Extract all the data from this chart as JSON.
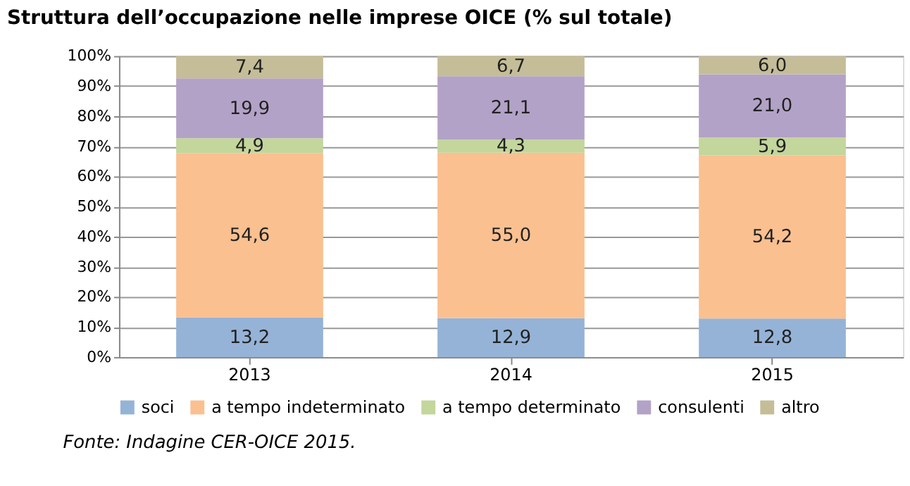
{
  "chart_data": {
    "type": "bar",
    "stacked": true,
    "title": "Struttura dell’occupazione nelle imprese OICE (% sul totale)",
    "categories": [
      "2013",
      "2014",
      "2015"
    ],
    "series": [
      {
        "name": "soci",
        "color": "#95b3d7",
        "values": [
          13.2,
          12.9,
          12.8
        ],
        "value_labels": [
          "13,2",
          "12,9",
          "12,8"
        ]
      },
      {
        "name": "a tempo indeterminato",
        "color": "#fac090",
        "values": [
          54.6,
          55.0,
          54.2
        ],
        "value_labels": [
          "54,6",
          "55,0",
          "54,2"
        ]
      },
      {
        "name": "a tempo determinato",
        "color": "#c3d69b",
        "values": [
          4.9,
          4.3,
          5.9
        ],
        "value_labels": [
          "4,9",
          "4,3",
          "5,9"
        ]
      },
      {
        "name": "consulenti",
        "color": "#b3a2c7",
        "values": [
          19.9,
          21.1,
          21.0
        ],
        "value_labels": [
          "19,9",
          "21,1",
          "21,0"
        ]
      },
      {
        "name": "altro",
        "color": "#c4bd97",
        "values": [
          7.4,
          6.7,
          6.0
        ],
        "value_labels": [
          "7,4",
          "6,7",
          "6,0"
        ]
      }
    ],
    "ylim": [
      0,
      100
    ],
    "yticks": [
      {
        "value": 0,
        "label": "0%"
      },
      {
        "value": 10,
        "label": "10%"
      },
      {
        "value": 20,
        "label": "20%"
      },
      {
        "value": 30,
        "label": "30%"
      },
      {
        "value": 40,
        "label": "40%"
      },
      {
        "value": 50,
        "label": "50%"
      },
      {
        "value": 60,
        "label": "60%"
      },
      {
        "value": 70,
        "label": "70%"
      },
      {
        "value": 80,
        "label": "80%"
      },
      {
        "value": 90,
        "label": "90%"
      },
      {
        "value": 100,
        "label": "100%"
      }
    ],
    "grid": "y",
    "legend": "bottom",
    "annotations": [
      "Fonte: Indagine CER-OICE 2015."
    ]
  }
}
